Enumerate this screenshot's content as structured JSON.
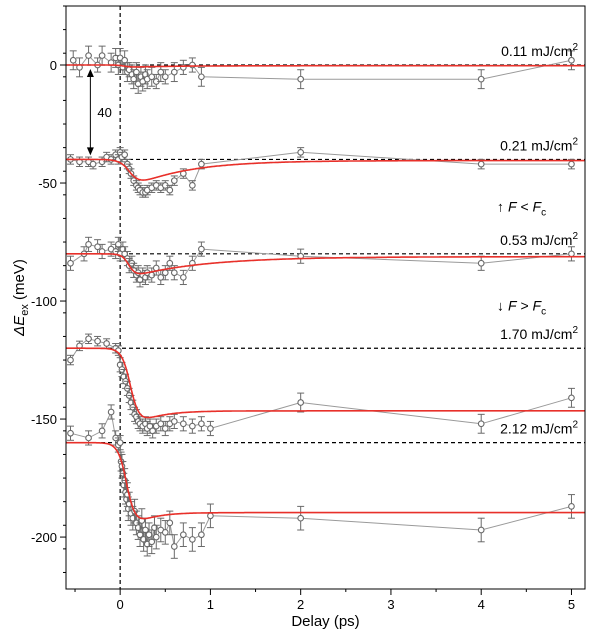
{
  "chart_data": {
    "type": "scatter",
    "xlabel": "Delay (ps)",
    "ylabel_parts": {
      "prefix": "ΔE",
      "sub": "ex",
      "suffix": " (meV)"
    },
    "xlim": [
      -0.6,
      5.15
    ],
    "ylim": [
      -222,
      25
    ],
    "x_ticks": [
      0,
      1,
      2,
      3,
      4,
      5
    ],
    "x_tick_labels": [
      "0",
      "1",
      "2",
      "3",
      "4",
      "5"
    ],
    "y_ticks": [
      0,
      -50,
      -100,
      -150,
      -200
    ],
    "y_tick_labels": [
      "0",
      "-50",
      "-100",
      "-150",
      "-200"
    ],
    "offset_marker": {
      "label": "40",
      "x": -0.33,
      "from": 0,
      "to": -40
    },
    "zero_line_x": 0,
    "colors": {
      "data": "#6a6a6a",
      "fit": "#e8302a",
      "baseline": "#000000"
    },
    "annotations": {
      "below_fc": {
        "arrow": "↑",
        "F": "F",
        "op": " < ",
        "Fc": "F",
        "c": "c"
      },
      "above_fc": {
        "arrow": "↓",
        "F": "F",
        "op": " > ",
        "Fc": "F",
        "c": "c"
      }
    },
    "series": [
      {
        "name": "0.11 mJ/cm2",
        "label_value": "0.11 mJ/cm",
        "label_sup": "2",
        "baseline": 0,
        "fit_depth": 1,
        "fit_tau": 0.5,
        "fit_rise_center": 0.05,
        "fit_rise_width": 0.04,
        "fit_resid": 0.3,
        "points": [
          {
            "x": -0.52,
            "y": 2,
            "e": 4
          },
          {
            "x": -0.45,
            "y": -1,
            "e": 4
          },
          {
            "x": -0.35,
            "y": 4,
            "e": 4
          },
          {
            "x": -0.25,
            "y": 0,
            "e": 3
          },
          {
            "x": -0.2,
            "y": 4,
            "e": 4
          },
          {
            "x": -0.1,
            "y": 1,
            "e": 4
          },
          {
            "x": -0.05,
            "y": 3,
            "e": 4
          },
          {
            "x": -0.02,
            "y": 0,
            "e": 4
          },
          {
            "x": 0.0,
            "y": 3,
            "e": 4
          },
          {
            "x": 0.03,
            "y": -1,
            "e": 3
          },
          {
            "x": 0.05,
            "y": 2,
            "e": 4
          },
          {
            "x": 0.08,
            "y": -3,
            "e": 4
          },
          {
            "x": 0.1,
            "y": -2,
            "e": 3
          },
          {
            "x": 0.13,
            "y": -4,
            "e": 4
          },
          {
            "x": 0.15,
            "y": -6,
            "e": 4
          },
          {
            "x": 0.18,
            "y": -3,
            "e": 4
          },
          {
            "x": 0.2,
            "y": -8,
            "e": 4
          },
          {
            "x": 0.23,
            "y": -5,
            "e": 4
          },
          {
            "x": 0.25,
            "y": -7,
            "e": 4
          },
          {
            "x": 0.28,
            "y": -4,
            "e": 4
          },
          {
            "x": 0.3,
            "y": -6,
            "e": 4
          },
          {
            "x": 0.35,
            "y": -5,
            "e": 4
          },
          {
            "x": 0.4,
            "y": -7,
            "e": 3
          },
          {
            "x": 0.45,
            "y": -3,
            "e": 4
          },
          {
            "x": 0.5,
            "y": -5,
            "e": 3
          },
          {
            "x": 0.6,
            "y": -3,
            "e": 4
          },
          {
            "x": 0.7,
            "y": -1,
            "e": 3
          },
          {
            "x": 0.8,
            "y": 0,
            "e": 3
          },
          {
            "x": 0.9,
            "y": -5,
            "e": 4
          },
          {
            "x": 2.0,
            "y": -6,
            "e": 4
          },
          {
            "x": 4.0,
            "y": -6,
            "e": 4
          },
          {
            "x": 5.0,
            "y": 2,
            "e": 4
          }
        ]
      },
      {
        "name": "0.21 mJ/cm2",
        "label_value": "0.21 mJ/cm",
        "label_sup": "2",
        "baseline": -40,
        "fit_depth": 12,
        "fit_tau": 0.6,
        "fit_rise_center": 0.12,
        "fit_rise_width": 0.06,
        "fit_resid": 0.04,
        "points": [
          {
            "x": -0.55,
            "y": -40,
            "e": 2
          },
          {
            "x": -0.45,
            "y": -41,
            "e": 2
          },
          {
            "x": -0.35,
            "y": -41,
            "e": 2
          },
          {
            "x": -0.3,
            "y": -42,
            "e": 2
          },
          {
            "x": -0.2,
            "y": -41,
            "e": 2
          },
          {
            "x": -0.15,
            "y": -39,
            "e": 2
          },
          {
            "x": -0.1,
            "y": -40,
            "e": 2
          },
          {
            "x": -0.05,
            "y": -38,
            "e": 2
          },
          {
            "x": -0.02,
            "y": -40,
            "e": 2
          },
          {
            "x": 0.0,
            "y": -37,
            "e": 2
          },
          {
            "x": 0.02,
            "y": -39,
            "e": 2
          },
          {
            "x": 0.05,
            "y": -38,
            "e": 2
          },
          {
            "x": 0.08,
            "y": -42,
            "e": 2
          },
          {
            "x": 0.1,
            "y": -44,
            "e": 2
          },
          {
            "x": 0.12,
            "y": -46,
            "e": 2
          },
          {
            "x": 0.15,
            "y": -49,
            "e": 2
          },
          {
            "x": 0.18,
            "y": -51,
            "e": 2
          },
          {
            "x": 0.2,
            "y": -52,
            "e": 2
          },
          {
            "x": 0.22,
            "y": -53,
            "e": 2
          },
          {
            "x": 0.25,
            "y": -54,
            "e": 2
          },
          {
            "x": 0.28,
            "y": -54,
            "e": 2
          },
          {
            "x": 0.3,
            "y": -53,
            "e": 2
          },
          {
            "x": 0.35,
            "y": -52,
            "e": 2
          },
          {
            "x": 0.4,
            "y": -51,
            "e": 2
          },
          {
            "x": 0.45,
            "y": -52,
            "e": 2
          },
          {
            "x": 0.5,
            "y": -51,
            "e": 2
          },
          {
            "x": 0.55,
            "y": -53,
            "e": 2
          },
          {
            "x": 0.6,
            "y": -49,
            "e": 2
          },
          {
            "x": 0.7,
            "y": -46,
            "e": 2
          },
          {
            "x": 0.8,
            "y": -51,
            "e": 2
          },
          {
            "x": 0.9,
            "y": -42,
            "e": 2
          },
          {
            "x": 2.0,
            "y": -37,
            "e": 2
          },
          {
            "x": 4.0,
            "y": -42,
            "e": 2
          },
          {
            "x": 5.0,
            "y": -42,
            "e": 2
          }
        ]
      },
      {
        "name": "0.53 mJ/cm2",
        "label_value": "0.53 mJ/cm",
        "label_sup": "2",
        "baseline": -80,
        "fit_depth": 10,
        "fit_tau": 0.8,
        "fit_rise_center": 0.1,
        "fit_rise_width": 0.04,
        "fit_resid": 0.12,
        "points": [
          {
            "x": -0.55,
            "y": -84,
            "e": 3
          },
          {
            "x": -0.4,
            "y": -80,
            "e": 3
          },
          {
            "x": -0.35,
            "y": -76,
            "e": 3
          },
          {
            "x": -0.25,
            "y": -77,
            "e": 3
          },
          {
            "x": -0.2,
            "y": -79,
            "e": 3
          },
          {
            "x": -0.1,
            "y": -78,
            "e": 3
          },
          {
            "x": -0.05,
            "y": -79,
            "e": 3
          },
          {
            "x": -0.02,
            "y": -76,
            "e": 3
          },
          {
            "x": 0.0,
            "y": -80,
            "e": 3
          },
          {
            "x": 0.03,
            "y": -78,
            "e": 3
          },
          {
            "x": 0.05,
            "y": -80,
            "e": 3
          },
          {
            "x": 0.08,
            "y": -82,
            "e": 3
          },
          {
            "x": 0.1,
            "y": -85,
            "e": 3
          },
          {
            "x": 0.13,
            "y": -84,
            "e": 3
          },
          {
            "x": 0.15,
            "y": -87,
            "e": 3
          },
          {
            "x": 0.18,
            "y": -89,
            "e": 3
          },
          {
            "x": 0.2,
            "y": -88,
            "e": 3
          },
          {
            "x": 0.22,
            "y": -91,
            "e": 3
          },
          {
            "x": 0.25,
            "y": -89,
            "e": 3
          },
          {
            "x": 0.28,
            "y": -90,
            "e": 3
          },
          {
            "x": 0.3,
            "y": -88,
            "e": 3
          },
          {
            "x": 0.35,
            "y": -89,
            "e": 3
          },
          {
            "x": 0.4,
            "y": -86,
            "e": 3
          },
          {
            "x": 0.45,
            "y": -90,
            "e": 3
          },
          {
            "x": 0.5,
            "y": -88,
            "e": 3
          },
          {
            "x": 0.55,
            "y": -84,
            "e": 3
          },
          {
            "x": 0.6,
            "y": -88,
            "e": 3
          },
          {
            "x": 0.7,
            "y": -90,
            "e": 3
          },
          {
            "x": 0.8,
            "y": -84,
            "e": 3
          },
          {
            "x": 0.9,
            "y": -78,
            "e": 3
          },
          {
            "x": 2.0,
            "y": -81,
            "e": 3
          },
          {
            "x": 4.0,
            "y": -84,
            "e": 3
          },
          {
            "x": 5.0,
            "y": -80,
            "e": 3
          }
        ]
      },
      {
        "name": "1.70 mJ/cm2",
        "label_value": "1.70 mJ/cm",
        "label_sup": "2",
        "baseline": -120,
        "fit_depth": 34,
        "fit_tau": 0.25,
        "fit_rise_center": 0.12,
        "fit_rise_width": 0.05,
        "fit_resid": 0.78,
        "points": [
          {
            "x": -0.55,
            "y": -125,
            "e": 2
          },
          {
            "x": -0.45,
            "y": -119,
            "e": 2
          },
          {
            "x": -0.35,
            "y": -116,
            "e": 2
          },
          {
            "x": -0.25,
            "y": -117,
            "e": 2
          },
          {
            "x": -0.15,
            "y": -118,
            "e": 2
          },
          {
            "x": -0.05,
            "y": -120,
            "e": 2
          },
          {
            "x": -0.02,
            "y": -121,
            "e": 2
          },
          {
            "x": 0.0,
            "y": -127,
            "e": 3
          },
          {
            "x": 0.02,
            "y": -129,
            "e": 3
          },
          {
            "x": 0.04,
            "y": -132,
            "e": 3
          },
          {
            "x": 0.06,
            "y": -134,
            "e": 3
          },
          {
            "x": 0.08,
            "y": -137,
            "e": 3
          },
          {
            "x": 0.1,
            "y": -140,
            "e": 3
          },
          {
            "x": 0.12,
            "y": -143,
            "e": 3
          },
          {
            "x": 0.14,
            "y": -145,
            "e": 3
          },
          {
            "x": 0.16,
            "y": -148,
            "e": 3
          },
          {
            "x": 0.18,
            "y": -149,
            "e": 3
          },
          {
            "x": 0.2,
            "y": -151,
            "e": 3
          },
          {
            "x": 0.22,
            "y": -152,
            "e": 3
          },
          {
            "x": 0.25,
            "y": -153,
            "e": 3
          },
          {
            "x": 0.28,
            "y": -152,
            "e": 3
          },
          {
            "x": 0.3,
            "y": -154,
            "e": 3
          },
          {
            "x": 0.33,
            "y": -153,
            "e": 3
          },
          {
            "x": 0.36,
            "y": -155,
            "e": 3
          },
          {
            "x": 0.4,
            "y": -153,
            "e": 3
          },
          {
            "x": 0.45,
            "y": -152,
            "e": 3
          },
          {
            "x": 0.5,
            "y": -154,
            "e": 3
          },
          {
            "x": 0.55,
            "y": -152,
            "e": 3
          },
          {
            "x": 0.6,
            "y": -151,
            "e": 3
          },
          {
            "x": 0.7,
            "y": -152,
            "e": 3
          },
          {
            "x": 0.8,
            "y": -153,
            "e": 3
          },
          {
            "x": 0.9,
            "y": -152,
            "e": 3
          },
          {
            "x": 1.0,
            "y": -154,
            "e": 3
          },
          {
            "x": 2.0,
            "y": -143,
            "e": 4
          },
          {
            "x": 4.0,
            "y": -152,
            "e": 4
          },
          {
            "x": 5.0,
            "y": -141,
            "e": 4
          }
        ]
      },
      {
        "name": "2.12 mJ/cm2",
        "label_value": "2.12 mJ/cm",
        "label_sup": "2",
        "baseline": -160,
        "fit_depth": 38,
        "fit_tau": 0.2,
        "fit_rise_center": 0.08,
        "fit_rise_width": 0.05,
        "fit_resid": 0.78,
        "points": [
          {
            "x": -0.55,
            "y": -156,
            "e": 3
          },
          {
            "x": -0.35,
            "y": -158,
            "e": 3
          },
          {
            "x": -0.2,
            "y": -155,
            "e": 3
          },
          {
            "x": -0.1,
            "y": -147,
            "e": 3
          },
          {
            "x": -0.05,
            "y": -158,
            "e": 3
          },
          {
            "x": -0.02,
            "y": -161,
            "e": 3
          },
          {
            "x": 0.0,
            "y": -160,
            "e": 3
          },
          {
            "x": 0.01,
            "y": -168,
            "e": 4
          },
          {
            "x": 0.02,
            "y": -170,
            "e": 5
          },
          {
            "x": 0.03,
            "y": -173,
            "e": 5
          },
          {
            "x": 0.04,
            "y": -178,
            "e": 5
          },
          {
            "x": 0.05,
            "y": -176,
            "e": 5
          },
          {
            "x": 0.06,
            "y": -181,
            "e": 5
          },
          {
            "x": 0.07,
            "y": -184,
            "e": 5
          },
          {
            "x": 0.08,
            "y": -182,
            "e": 5
          },
          {
            "x": 0.09,
            "y": -188,
            "e": 5
          },
          {
            "x": 0.1,
            "y": -186,
            "e": 5
          },
          {
            "x": 0.12,
            "y": -190,
            "e": 5
          },
          {
            "x": 0.14,
            "y": -192,
            "e": 5
          },
          {
            "x": 0.16,
            "y": -189,
            "e": 5
          },
          {
            "x": 0.18,
            "y": -194,
            "e": 5
          },
          {
            "x": 0.2,
            "y": -196,
            "e": 5
          },
          {
            "x": 0.22,
            "y": -199,
            "e": 5
          },
          {
            "x": 0.24,
            "y": -193,
            "e": 5
          },
          {
            "x": 0.26,
            "y": -201,
            "e": 5
          },
          {
            "x": 0.28,
            "y": -197,
            "e": 5
          },
          {
            "x": 0.3,
            "y": -203,
            "e": 5
          },
          {
            "x": 0.32,
            "y": -199,
            "e": 5
          },
          {
            "x": 0.35,
            "y": -202,
            "e": 5
          },
          {
            "x": 0.38,
            "y": -196,
            "e": 5
          },
          {
            "x": 0.4,
            "y": -200,
            "e": 5
          },
          {
            "x": 0.45,
            "y": -197,
            "e": 5
          },
          {
            "x": 0.5,
            "y": -198,
            "e": 5
          },
          {
            "x": 0.55,
            "y": -194,
            "e": 5
          },
          {
            "x": 0.6,
            "y": -204,
            "e": 5
          },
          {
            "x": 0.7,
            "y": -199,
            "e": 5
          },
          {
            "x": 0.8,
            "y": -201,
            "e": 5
          },
          {
            "x": 0.9,
            "y": -199,
            "e": 5
          },
          {
            "x": 1.0,
            "y": -191,
            "e": 5
          },
          {
            "x": 2.0,
            "y": -192,
            "e": 5
          },
          {
            "x": 4.0,
            "y": -197,
            "e": 5
          },
          {
            "x": 5.0,
            "y": -187,
            "e": 5
          }
        ]
      }
    ]
  }
}
